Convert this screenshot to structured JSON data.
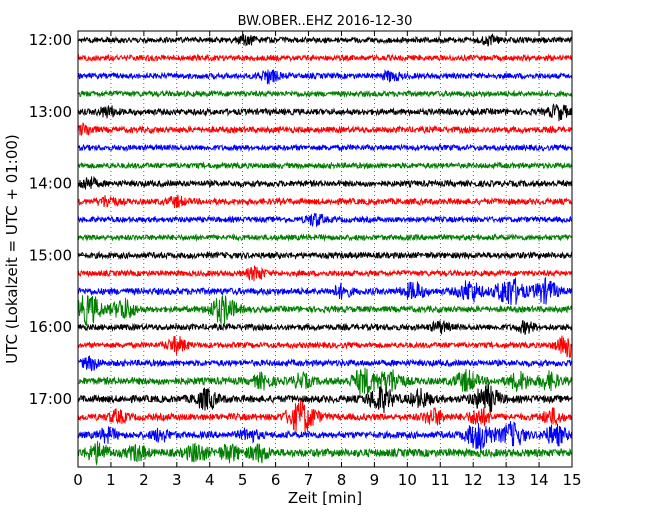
{
  "chart_data": {
    "type": "line",
    "title": "BW.OBER..EHZ 2016-12-30",
    "xlabel": "Zeit  [min]",
    "ylabel": "UTC (Lokalzeit = UTC + 01:00)",
    "xlim": [
      0,
      15
    ],
    "x_ticks": [
      "0",
      "1",
      "2",
      "3",
      "4",
      "5",
      "6",
      "7",
      "8",
      "9",
      "10",
      "11",
      "12",
      "13",
      "14",
      "15"
    ],
    "y_ticks": [
      "12:00",
      "13:00",
      "14:00",
      "15:00",
      "16:00",
      "17:00"
    ],
    "trace_interval_minutes": 15,
    "grid": true,
    "colors": [
      "#000000",
      "#ff0000",
      "#0000ff",
      "#008000"
    ],
    "traces": [
      {
        "start": "12:00",
        "color": "#000000",
        "amplitude": 0.45,
        "events": [
          {
            "x": 5.1,
            "amp": 0.8
          },
          {
            "x": 12.5,
            "amp": 0.7
          }
        ]
      },
      {
        "start": "12:15",
        "color": "#ff0000",
        "amplitude": 0.45,
        "events": []
      },
      {
        "start": "12:30",
        "color": "#0000ff",
        "amplitude": 0.45,
        "events": [
          {
            "x": 5.8,
            "amp": 1.0
          },
          {
            "x": 9.5,
            "amp": 0.7
          }
        ]
      },
      {
        "start": "12:45",
        "color": "#008000",
        "amplitude": 0.45,
        "events": []
      },
      {
        "start": "13:00",
        "color": "#000000",
        "amplitude": 0.5,
        "events": [
          {
            "x": 0.9,
            "amp": 0.8
          },
          {
            "x": 14.6,
            "amp": 1.1
          }
        ]
      },
      {
        "start": "13:15",
        "color": "#ff0000",
        "amplitude": 0.5,
        "events": [
          {
            "x": 0.2,
            "amp": 0.8
          }
        ]
      },
      {
        "start": "13:30",
        "color": "#0000ff",
        "amplitude": 0.45,
        "events": []
      },
      {
        "start": "13:45",
        "color": "#008000",
        "amplitude": 0.45,
        "events": []
      },
      {
        "start": "14:00",
        "color": "#000000",
        "amplitude": 0.5,
        "events": [
          {
            "x": 0.3,
            "amp": 0.9
          }
        ]
      },
      {
        "start": "14:15",
        "color": "#ff0000",
        "amplitude": 0.5,
        "events": [
          {
            "x": 0.9,
            "amp": 0.8
          },
          {
            "x": 3.0,
            "amp": 0.7
          }
        ]
      },
      {
        "start": "14:30",
        "color": "#0000ff",
        "amplitude": 0.45,
        "events": [
          {
            "x": 7.2,
            "amp": 0.9
          }
        ]
      },
      {
        "start": "14:45",
        "color": "#008000",
        "amplitude": 0.45,
        "events": []
      },
      {
        "start": "15:00",
        "color": "#000000",
        "amplitude": 0.5,
        "events": []
      },
      {
        "start": "15:15",
        "color": "#ff0000",
        "amplitude": 0.45,
        "events": [
          {
            "x": 5.4,
            "amp": 1.0
          }
        ]
      },
      {
        "start": "15:30",
        "color": "#0000ff",
        "amplitude": 0.55,
        "events": [
          {
            "x": 8.0,
            "amp": 0.9
          },
          {
            "x": 10.2,
            "amp": 1.3
          },
          {
            "x": 11.9,
            "amp": 1.6
          },
          {
            "x": 13.1,
            "amp": 2.2
          },
          {
            "x": 14.2,
            "amp": 1.7
          }
        ]
      },
      {
        "start": "15:45",
        "color": "#008000",
        "amplitude": 0.5,
        "events": [
          {
            "x": 0.3,
            "amp": 2.3
          },
          {
            "x": 1.4,
            "amp": 1.6
          },
          {
            "x": 4.4,
            "amp": 2.1
          }
        ]
      },
      {
        "start": "16:00",
        "color": "#000000",
        "amplitude": 0.5,
        "events": [
          {
            "x": 11.0,
            "amp": 0.8
          },
          {
            "x": 13.6,
            "amp": 0.8
          }
        ]
      },
      {
        "start": "16:15",
        "color": "#ff0000",
        "amplitude": 0.45,
        "events": [
          {
            "x": 3.0,
            "amp": 1.2
          },
          {
            "x": 14.9,
            "amp": 1.7
          }
        ]
      },
      {
        "start": "16:30",
        "color": "#0000ff",
        "amplitude": 0.5,
        "events": [
          {
            "x": 0.4,
            "amp": 0.9
          }
        ]
      },
      {
        "start": "16:45",
        "color": "#008000",
        "amplitude": 0.6,
        "events": [
          {
            "x": 5.6,
            "amp": 1.0
          },
          {
            "x": 6.8,
            "amp": 1.0
          },
          {
            "x": 8.7,
            "amp": 1.9
          },
          {
            "x": 9.5,
            "amp": 1.7
          },
          {
            "x": 11.8,
            "amp": 1.5
          },
          {
            "x": 13.4,
            "amp": 1.3
          },
          {
            "x": 14.3,
            "amp": 1.2
          }
        ]
      },
      {
        "start": "17:00",
        "color": "#000000",
        "amplitude": 0.6,
        "events": [
          {
            "x": 3.9,
            "amp": 1.5
          },
          {
            "x": 9.2,
            "amp": 1.9
          },
          {
            "x": 10.4,
            "amp": 1.3
          },
          {
            "x": 12.4,
            "amp": 2.0
          }
        ]
      },
      {
        "start": "17:15",
        "color": "#ff0000",
        "amplitude": 0.55,
        "events": [
          {
            "x": 1.2,
            "amp": 0.9
          },
          {
            "x": 6.8,
            "amp": 2.4
          },
          {
            "x": 10.8,
            "amp": 1.2
          },
          {
            "x": 12.2,
            "amp": 1.3
          },
          {
            "x": 14.4,
            "amp": 1.1
          }
        ]
      },
      {
        "start": "17:30",
        "color": "#0000ff",
        "amplitude": 0.55,
        "events": [
          {
            "x": 0.9,
            "amp": 1.0
          },
          {
            "x": 2.5,
            "amp": 0.9
          },
          {
            "x": 5.2,
            "amp": 0.9
          },
          {
            "x": 12.2,
            "amp": 2.2
          },
          {
            "x": 13.2,
            "amp": 1.8
          },
          {
            "x": 14.5,
            "amp": 1.5
          }
        ]
      },
      {
        "start": "17:45",
        "color": "#008000",
        "amplitude": 0.65,
        "events": [
          {
            "x": 0.6,
            "amp": 1.4
          },
          {
            "x": 1.8,
            "amp": 1.1
          },
          {
            "x": 3.6,
            "amp": 1.3
          },
          {
            "x": 4.6,
            "amp": 1.2
          },
          {
            "x": 5.5,
            "amp": 1.2
          }
        ]
      }
    ]
  }
}
